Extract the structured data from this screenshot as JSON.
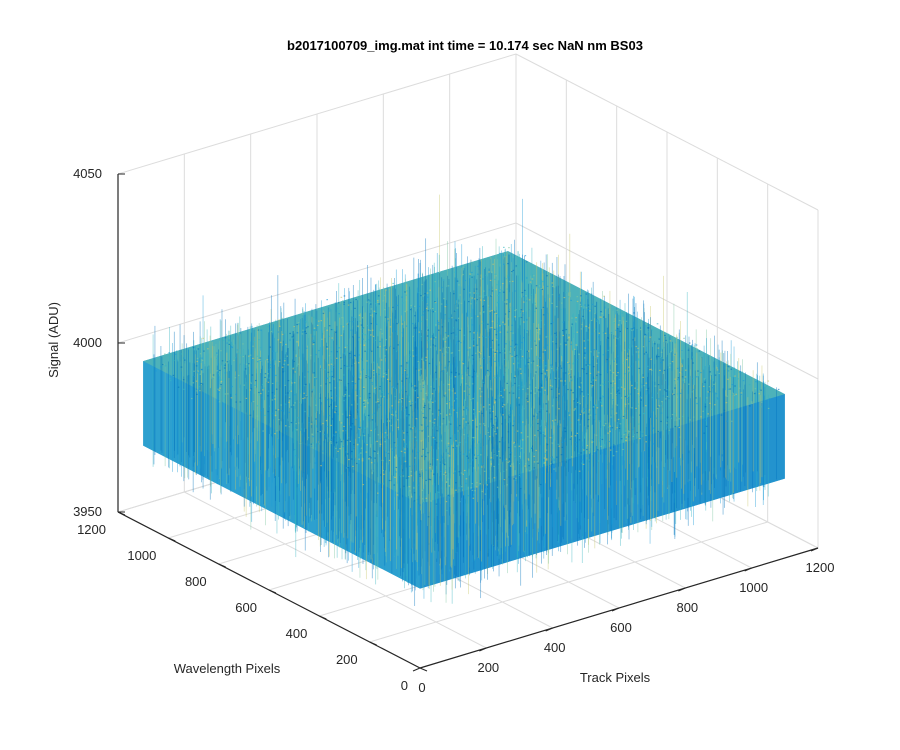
{
  "chart_data": {
    "type": "surface",
    "title": "b2017100709_img.mat int time = 10.174 sec  NaN nm BS03",
    "xlabel": "Track Pixels",
    "ylabel": "Wavelength Pixels",
    "zlabel": "Signal (ADU)",
    "xlim": [
      0,
      1200
    ],
    "ylim": [
      0,
      1200
    ],
    "zlim": [
      3950,
      4050
    ],
    "x_ticks": [
      "0",
      "200",
      "400",
      "600",
      "800",
      "1000",
      "1200"
    ],
    "y_ticks": [
      "0",
      "200",
      "400",
      "600",
      "800",
      "1000",
      "1200"
    ],
    "z_ticks": [
      "3950",
      "4000",
      "4050"
    ],
    "grid": true,
    "surface": {
      "x_range": [
        0,
        1100
      ],
      "y_range": [
        0,
        1100
      ],
      "mean_signal": 3986,
      "typical_spread": [
        3973,
        3998
      ],
      "max_signal": 4035,
      "min_signal": 3965,
      "colormap": [
        "#0072bd",
        "#1a9bd7",
        "#36b5c1",
        "#7dc6a0",
        "#c9c86a"
      ]
    }
  }
}
